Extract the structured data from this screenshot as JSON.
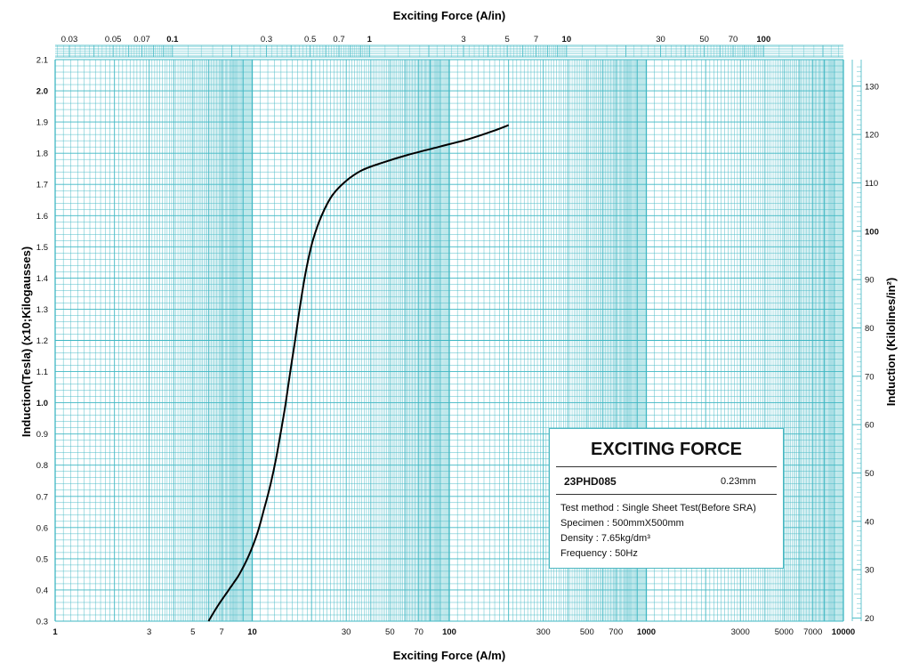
{
  "chart_data": {
    "type": "line",
    "title": "",
    "x_axis": {
      "label": "Exciting Force (A/m)",
      "scale": "log",
      "range": [
        1,
        10000
      ],
      "ticks": [
        "1",
        "3",
        "5",
        "7",
        "10",
        "30",
        "50",
        "70",
        "100",
        "300",
        "500",
        "700",
        "1000",
        "3000",
        "5000",
        "7000",
        "10000"
      ]
    },
    "x_axis_top": {
      "label": "Exciting Force (A/in)",
      "scale": "log",
      "ticks": [
        "0.03",
        "0.05",
        "0.07",
        "0.1",
        "0.3",
        "0.5",
        "0.7",
        "1",
        "3",
        "5",
        "7",
        "10",
        "30",
        "50",
        "70",
        "100"
      ]
    },
    "y_axis": {
      "label": "Induction(Tesla) (x10;Kilogausses)",
      "range": [
        0.3,
        2.1
      ],
      "ticks": [
        "0.3",
        "0.4",
        "0.5",
        "0.6",
        "0.7",
        "0.8",
        "0.9",
        "1.0",
        "1.1",
        "1.2",
        "1.3",
        "1.4",
        "1.5",
        "1.6",
        "1.7",
        "1.8",
        "1.9",
        "2.0",
        "2.1"
      ]
    },
    "y_axis_right": {
      "label": "Induction (Kilolines/in²)",
      "ticks": [
        "20",
        "30",
        "40",
        "50",
        "60",
        "70",
        "80",
        "90",
        "100",
        "110",
        "120",
        "130"
      ]
    },
    "grid": true,
    "series": [
      {
        "x": [
          6.0,
          6.7,
          7.6,
          8.6,
          9.6,
          10.6,
          11.5,
          12.4,
          13.2,
          14.0,
          14.8,
          15.6,
          16.5,
          17.5,
          18.7,
          20.3,
          22.5,
          25.5,
          29.8,
          36,
          46,
          62,
          88,
          125,
          165,
          200
        ],
        "y": [
          0.3,
          0.35,
          0.4,
          0.45,
          0.51,
          0.58,
          0.66,
          0.74,
          0.82,
          0.91,
          1.0,
          1.1,
          1.2,
          1.31,
          1.42,
          1.52,
          1.6,
          1.665,
          1.71,
          1.745,
          1.77,
          1.795,
          1.82,
          1.845,
          1.87,
          1.89
        ]
      }
    ]
  },
  "infobox": {
    "title": "EXCITING FORCE",
    "grade": "23PHD085",
    "thickness": "0.23mm",
    "lines": [
      "Test method : Single Sheet Test(Before SRA)",
      "Specimen : 500mmX500mm",
      "Density : 7.65kg/dm³",
      "Frequency : 50Hz"
    ]
  },
  "colors": {
    "grid": "#3fb7c3",
    "grid_dense": "#6fcbd3",
    "curve": "#000000",
    "box_border": "#4fb8c2"
  }
}
